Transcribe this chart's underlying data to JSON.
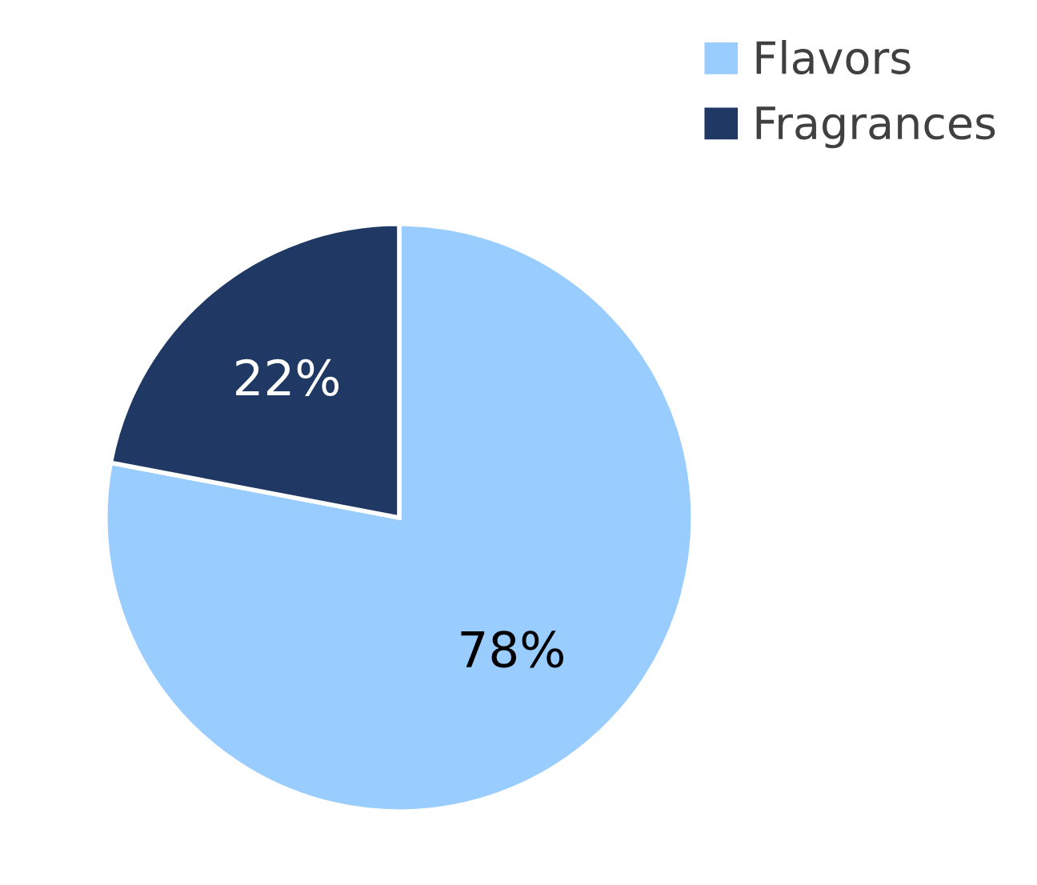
{
  "chart_data": {
    "type": "pie",
    "categories": [
      "Flavors",
      "Fragrances"
    ],
    "values": [
      78,
      22
    ],
    "colors": [
      "#99ccff",
      "#1f3864"
    ],
    "value_labels": [
      "78%",
      "22%"
    ],
    "legend": "top right"
  }
}
